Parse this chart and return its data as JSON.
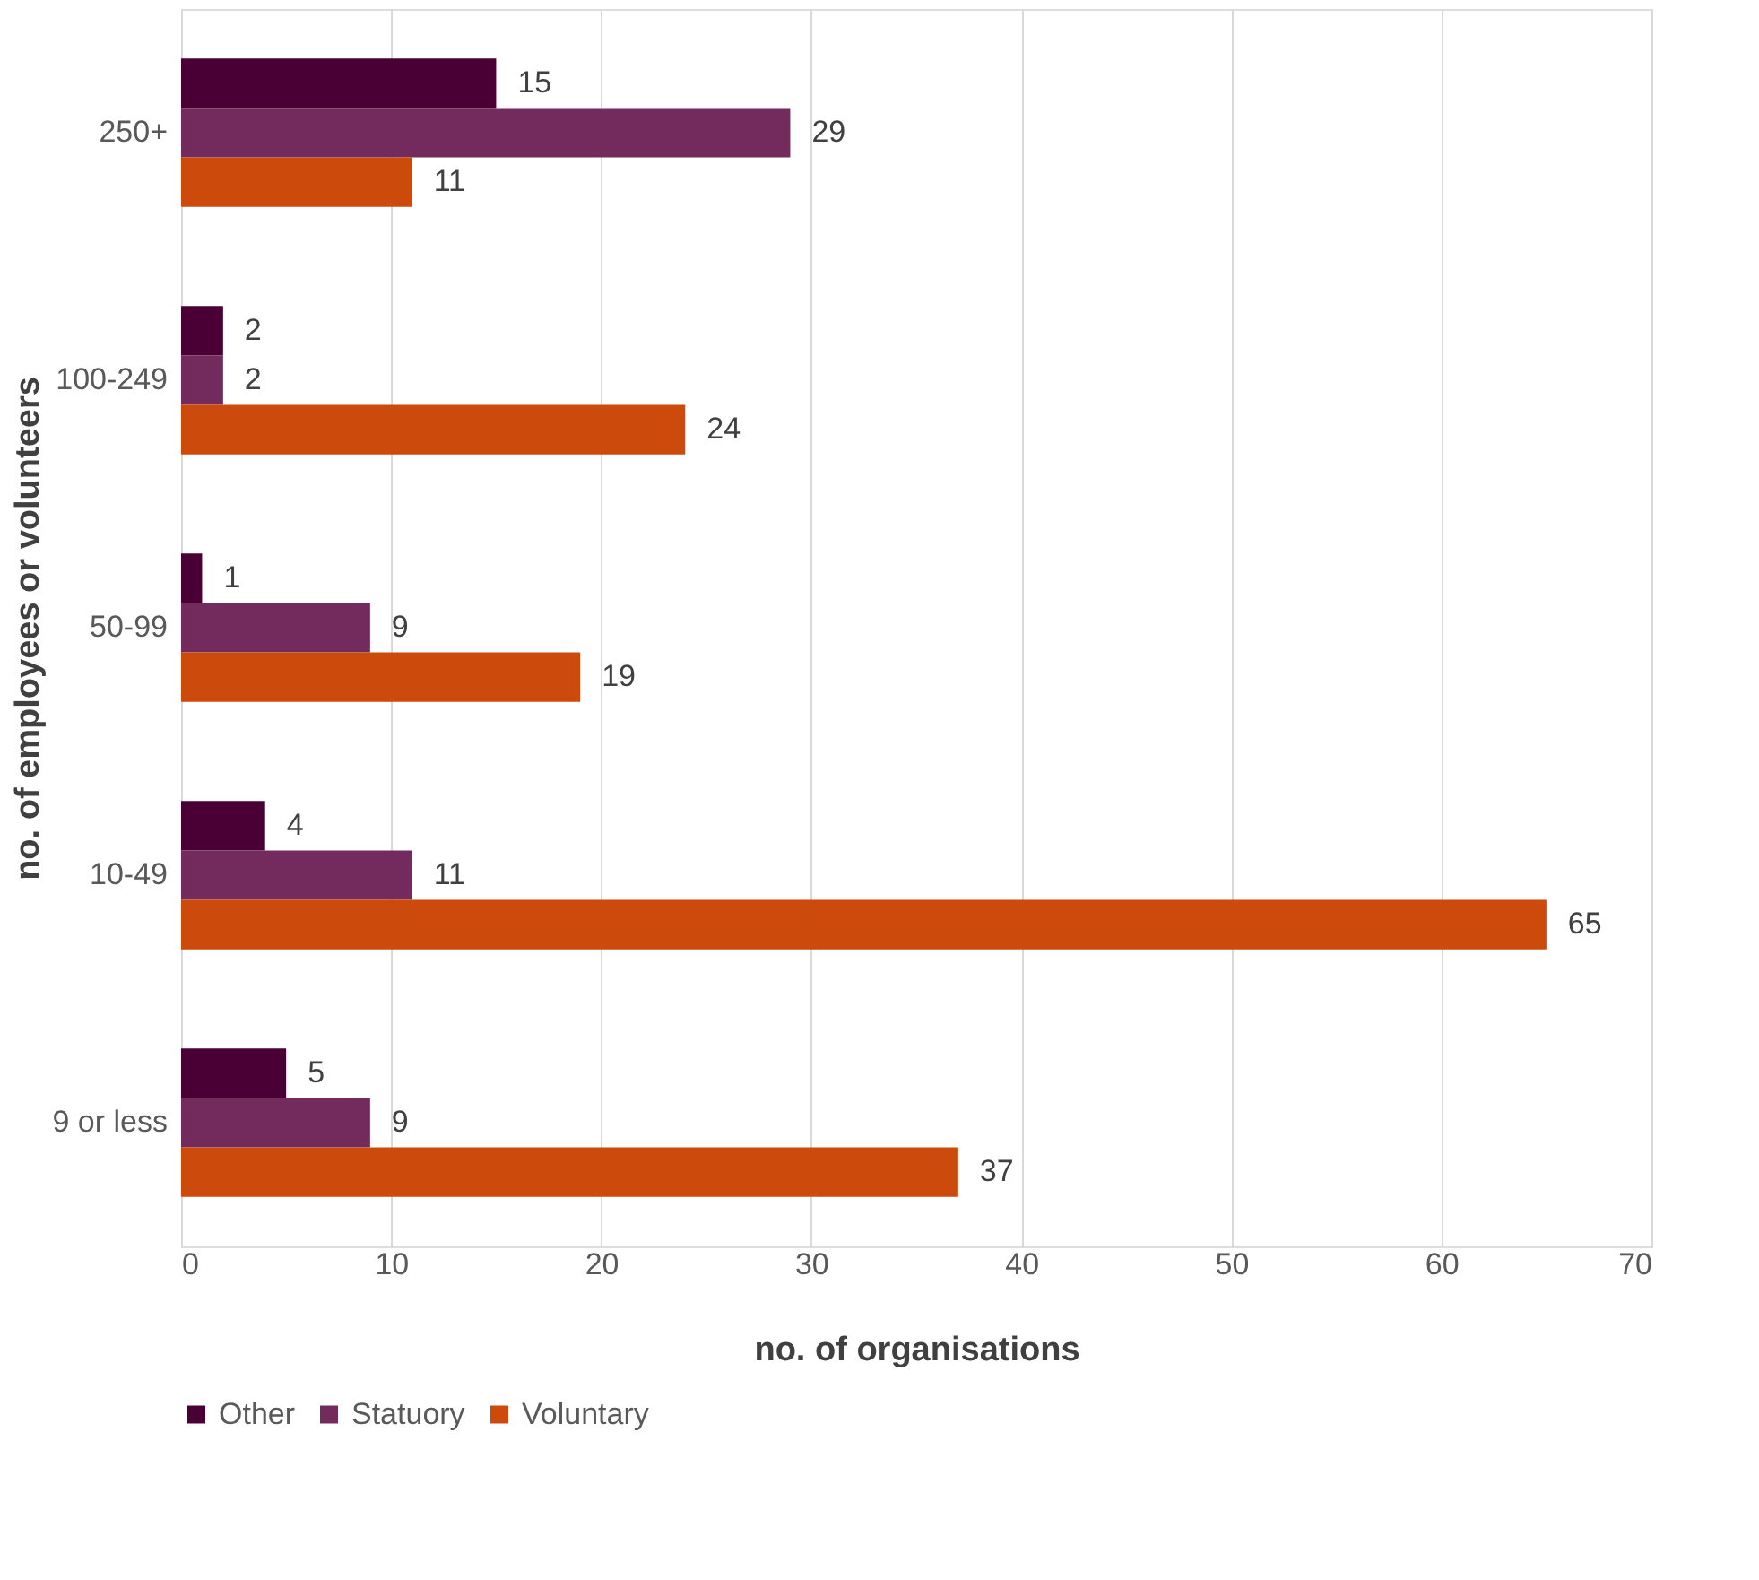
{
  "chart_data": {
    "type": "bar",
    "orientation": "horizontal",
    "categories": [
      "250+",
      "100-249",
      "50-99",
      "10-49",
      "9 or less"
    ],
    "series": [
      {
        "name": "Other",
        "color": "#4a0035",
        "values": [
          15,
          2,
          1,
          4,
          5
        ]
      },
      {
        "name": "Statuory",
        "color": "#722b5c",
        "values": [
          29,
          2,
          9,
          11,
          9
        ]
      },
      {
        "name": "Voluntary",
        "color": "#cc4a0b",
        "values": [
          11,
          24,
          19,
          65,
          37
        ]
      }
    ],
    "xlabel": "no. of organisations",
    "ylabel": "no. of employees or volunteers",
    "xlim": [
      0,
      70
    ],
    "xticks": [
      0,
      10,
      20,
      30,
      40,
      50,
      60,
      70
    ],
    "grid": "x",
    "legend": "bottom",
    "data_labels": true
  }
}
